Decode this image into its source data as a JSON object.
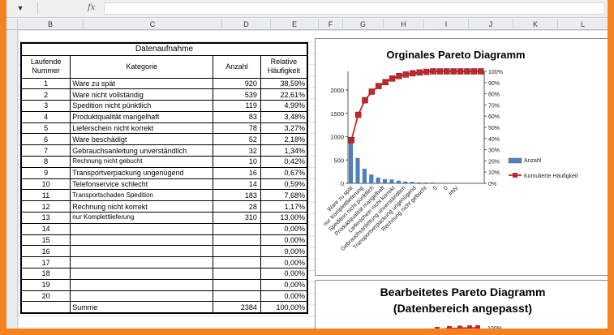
{
  "formula_bar": {
    "fx_label": "fx",
    "dropdown_arrow": "▼"
  },
  "columns": [
    "B",
    "C",
    "D",
    "E",
    "F",
    "G",
    "H",
    "I",
    "J",
    "K",
    "L"
  ],
  "table": {
    "title": "Datenaufnahme",
    "headers": {
      "nr": "Laufende Nummer",
      "kategorie": "Kategorie",
      "anzahl": "Anzahl",
      "relativ": "Relative Häufigkeit"
    },
    "rows": [
      {
        "nr": "1",
        "kategorie": "Ware zu spät",
        "anzahl": "920",
        "relativ": "38,59%"
      },
      {
        "nr": "2",
        "kategorie": "Ware nicht vollständig",
        "anzahl": "539",
        "relativ": "22,61%"
      },
      {
        "nr": "3",
        "kategorie": "Spedition nicht pünktlich",
        "anzahl": "119",
        "relativ": "4,99%"
      },
      {
        "nr": "4",
        "kategorie": "Produktqualität mangelhaft",
        "anzahl": "83",
        "relativ": "3,48%"
      },
      {
        "nr": "5",
        "kategorie": "Lieferschein nicht korrekt",
        "anzahl": "78",
        "relativ": "3,27%"
      },
      {
        "nr": "6",
        "kategorie": "Ware beschädigt",
        "anzahl": "52",
        "relativ": "2,18%"
      },
      {
        "nr": "7",
        "kategorie": "Gebrauchsanleitung unverständlich",
        "anzahl": "32",
        "relativ": "1,34%"
      },
      {
        "nr": "8",
        "kategorie": "Rechnung nicht gebucht",
        "anzahl": "10",
        "relativ": "0,42%",
        "small": true
      },
      {
        "nr": "9",
        "kategorie": "Transportverpackung ungenügend",
        "anzahl": "16",
        "relativ": "0,67%"
      },
      {
        "nr": "10",
        "kategorie": "Telefonservice schlecht",
        "anzahl": "14",
        "relativ": "0,59%"
      },
      {
        "nr": "11",
        "kategorie": "Transportschaden Spedition",
        "anzahl": "183",
        "relativ": "7,68%",
        "small": true
      },
      {
        "nr": "12",
        "kategorie": "Rechnung nicht korrekt",
        "anzahl": "28",
        "relativ": "1,17%"
      },
      {
        "nr": "13",
        "kategorie": "nur Komplettlieferung",
        "anzahl": "310",
        "relativ": "13,00%",
        "small": true
      },
      {
        "nr": "14",
        "kategorie": "",
        "anzahl": "",
        "relativ": "0,00%"
      },
      {
        "nr": "15",
        "kategorie": "",
        "anzahl": "",
        "relativ": "0,00%"
      },
      {
        "nr": "16",
        "kategorie": "",
        "anzahl": "",
        "relativ": "0,00%"
      },
      {
        "nr": "17",
        "kategorie": "",
        "anzahl": "",
        "relativ": "0,00%"
      },
      {
        "nr": "18",
        "kategorie": "",
        "anzahl": "",
        "relativ": "0,00%"
      },
      {
        "nr": "19",
        "kategorie": "",
        "anzahl": "",
        "relativ": "0,00%"
      },
      {
        "nr": "20",
        "kategorie": "",
        "anzahl": "",
        "relativ": "0,00%"
      }
    ],
    "sum_label": "Summe",
    "sum_anzahl": "2384",
    "sum_relativ": "100,00%"
  },
  "chart2": {
    "title_line1": "Bearbeitetes Pareto Diagramm",
    "title_line2": "(Datenbereich angepasst)",
    "axis_label": "100%"
  },
  "chart_data": [
    {
      "type": "bar",
      "title": "Orginales Pareto Diagramm",
      "categories": [
        "Ware zu spät",
        "nur Komplettlieferung",
        "Spedition nicht pünktlich",
        "Produktqualität mangelhaft",
        "Lieferschein nicht korrekt",
        "Ware beschädigt",
        "Gebrauchsanleitung unverständlich",
        "Transportverpackung ungenügend",
        "Rechnung nicht gebucht",
        "0",
        "0",
        "#NV",
        "",
        "",
        "",
        "",
        "",
        "",
        "",
        ""
      ],
      "x_tick_labels": [
        "Ware zu spät",
        "nur Komplettlieferung",
        "Spedition nicht pünktlich",
        "Produktqualität mangelhaft",
        "Lieferschein nicht korrekt",
        "Gebrauchsanleitung unverständlich",
        "Transportverpackung ungenügend",
        "Rechnung nicht gebucht",
        "0",
        "0",
        "#NV"
      ],
      "series": [
        {
          "name": "Anzahl",
          "axis": "left",
          "color": "#4f81bd",
          "values": [
            920,
            539,
            310,
            183,
            119,
            83,
            78,
            52,
            32,
            28,
            16,
            14,
            10,
            0,
            0,
            0,
            0,
            0,
            0,
            0
          ]
        },
        {
          "name": "Kumulierte Häufigkeit",
          "axis": "right",
          "color": "#c0282d",
          "values": [
            0.386,
            0.612,
            0.742,
            0.819,
            0.869,
            0.904,
            0.936,
            0.958,
            0.972,
            0.983,
            0.99,
            0.996,
            1.0,
            1.0,
            1.0,
            1.0,
            1.0,
            1.0,
            1.0,
            1.0
          ]
        }
      ],
      "y_left": {
        "ticks": [
          "0",
          "500",
          "1000",
          "1500",
          "2000"
        ],
        "ylim": [
          0,
          2400
        ]
      },
      "y_right": {
        "ticks": [
          "0%",
          "10%",
          "20%",
          "30%",
          "40%",
          "50%",
          "60%",
          "70%",
          "80%",
          "90%",
          "100%"
        ],
        "ylim": [
          0,
          1
        ]
      },
      "legend": "right",
      "grid": false
    }
  ]
}
